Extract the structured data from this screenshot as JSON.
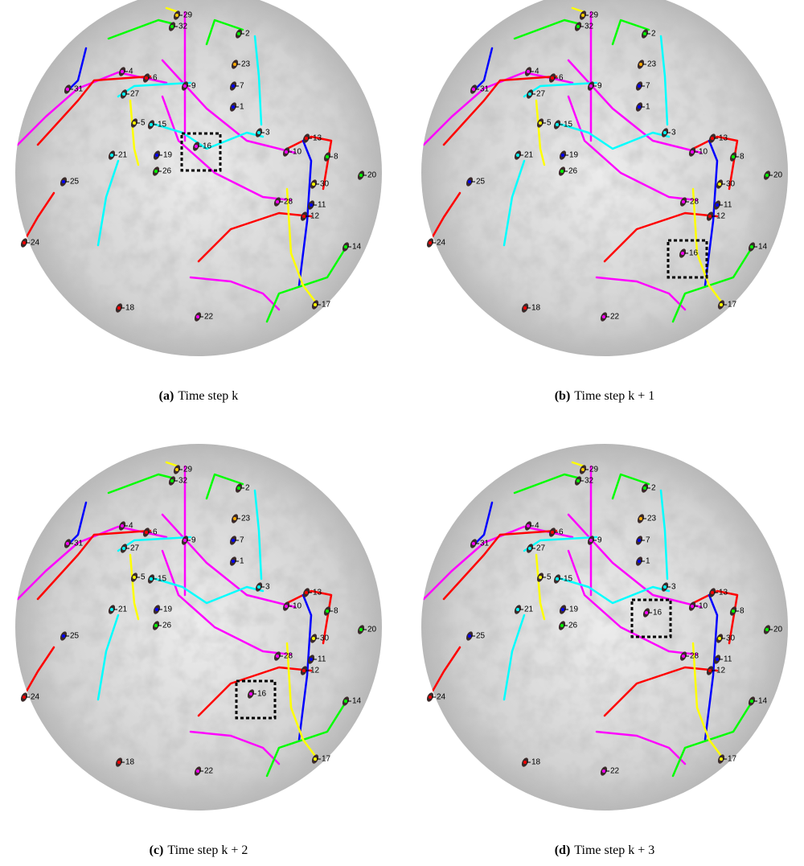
{
  "figure": {
    "panels": [
      {
        "tag": "(a)",
        "caption": "Time step k",
        "labels": [
          "29",
          "32",
          "2",
          "23",
          "4",
          "6",
          "9",
          "7",
          "31",
          "27",
          "1",
          "5",
          "15",
          "3",
          "13",
          "16",
          "10",
          "8",
          "21",
          "19",
          "26",
          "20",
          "25",
          "30",
          "28",
          "11",
          "12",
          "24",
          "14",
          "18",
          "17",
          "22"
        ]
      },
      {
        "tag": "(b)",
        "caption": "Time step k + 1",
        "labels": [
          "29",
          "32",
          "2",
          "23",
          "4",
          "6",
          "9",
          "7",
          "31",
          "27",
          "1",
          "5",
          "15",
          "3",
          "13",
          "16",
          "10",
          "8",
          "21",
          "19",
          "26",
          "20",
          "25",
          "30",
          "28",
          "11",
          "12",
          "24",
          "14",
          "18",
          "17",
          "22"
        ]
      },
      {
        "tag": "(c)",
        "caption": "Time step k + 2",
        "labels": [
          "29",
          "32",
          "2",
          "23",
          "4",
          "6",
          "9",
          "7",
          "31",
          "27",
          "1",
          "5",
          "15",
          "3",
          "13",
          "16",
          "10",
          "8",
          "21",
          "19",
          "26",
          "20",
          "25",
          "30",
          "28",
          "11",
          "12",
          "24",
          "14",
          "18",
          "17",
          "22"
        ]
      },
      {
        "tag": "(d)",
        "caption": "Time step k + 3",
        "labels": [
          "29",
          "32",
          "2",
          "23",
          "4",
          "6",
          "9",
          "7",
          "31",
          "27",
          "1",
          "5",
          "15",
          "3",
          "13",
          "16",
          "10",
          "8",
          "21",
          "19",
          "26",
          "20",
          "25",
          "30",
          "28",
          "11",
          "12",
          "24",
          "14",
          "18",
          "17",
          "22"
        ]
      }
    ]
  }
}
